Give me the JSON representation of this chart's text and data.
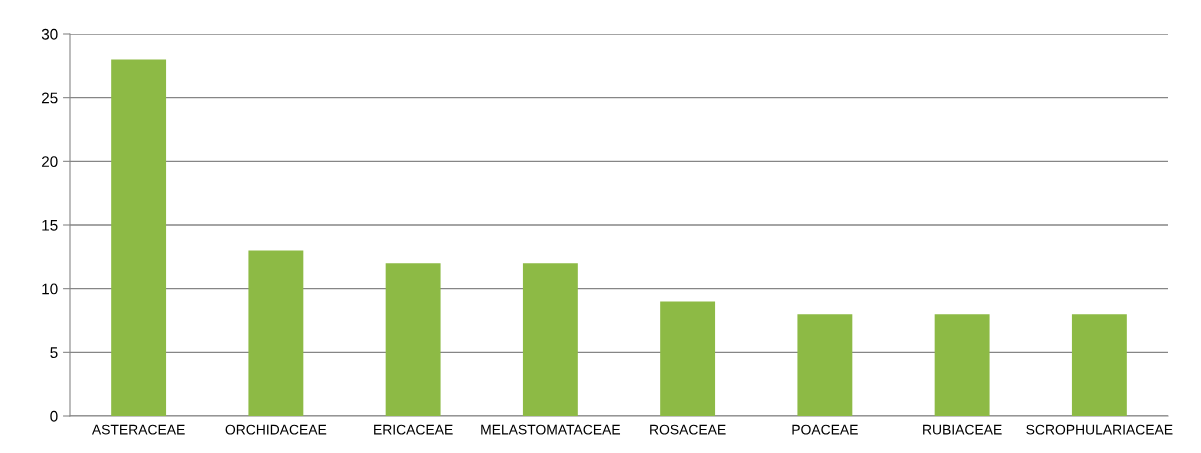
{
  "chart_data": {
    "type": "bar",
    "categories": [
      "ASTERACEAE",
      "ORCHIDACEAE",
      "ERICACEAE",
      "MELASTOMATACEAE",
      "ROSACEAE",
      "POACEAE",
      "RUBIACEAE",
      "SCROPHULARIACEAE"
    ],
    "values": [
      28,
      13,
      12,
      12,
      9,
      8,
      8,
      8
    ],
    "color": "#8dba45",
    "ylim": [
      0,
      30
    ],
    "yticks": [
      0,
      5,
      10,
      15,
      20,
      25,
      30
    ],
    "grid": "y"
  }
}
